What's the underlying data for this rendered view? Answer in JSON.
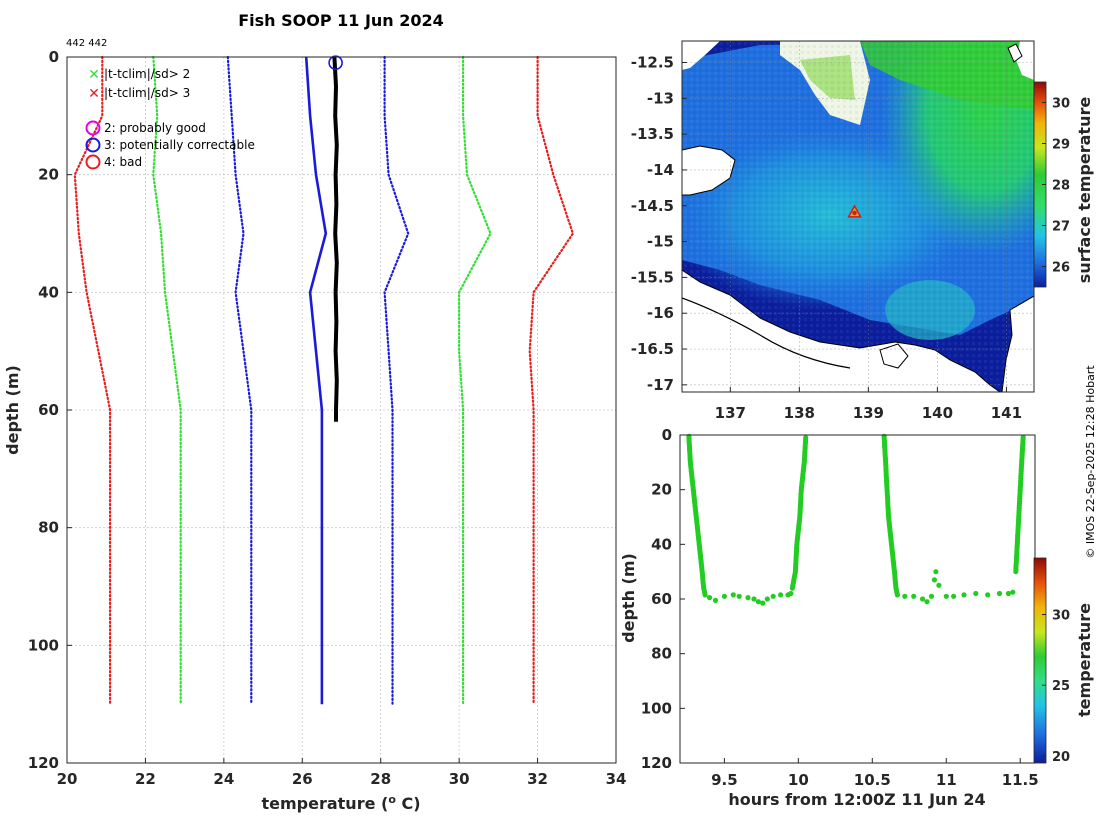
{
  "colors": {
    "red": "#e61e1e",
    "green": "#33dd33",
    "blue": "#1a1ad9",
    "black": "#000000",
    "glider_green": "#22cc22",
    "grid": "#c8c8d0",
    "deep_blue": "#0b1f9e"
  },
  "chart_data": [
    {
      "id": "profile",
      "type": "line",
      "title": "Fish SOOP 11 Jun 2024",
      "id_text": "442 442",
      "xlabel": "temperature (",
      "xlabel_sup": "o",
      "xlabel_end": " C)",
      "ylabel": "depth (m)",
      "xlim": [
        20,
        34
      ],
      "ylim": [
        0,
        120
      ],
      "xticks": [
        "20",
        "22",
        "24",
        "26",
        "28",
        "30",
        "32",
        "34"
      ],
      "yticks": [
        "0",
        "20",
        "40",
        "60",
        "80",
        "100",
        "120"
      ],
      "xtick_values": [
        20,
        22,
        24,
        26,
        28,
        30,
        32,
        34
      ],
      "ytick_values": [
        0,
        20,
        40,
        60,
        80,
        100,
        120
      ],
      "legend": {
        "flags": [
          {
            "label": "|t-tclim|/sd> 2",
            "color": "#33dd33"
          },
          {
            "label": "|t-tclim|/sd> 3",
            "color": "#e61e1e"
          }
        ],
        "quality": [
          {
            "label": "2: probably good",
            "color": "#e600e6"
          },
          {
            "label": "3: potentially correctable",
            "color": "#1a1ad9"
          },
          {
            "label": "4: bad",
            "color": "#e61e1e"
          }
        ]
      },
      "series": [
        {
          "name": "clim-3sd",
          "style": "dotted",
          "color": "#e61e1e",
          "points": [
            [
              20.9,
              0
            ],
            [
              20.9,
              10
            ],
            [
              20.2,
              20
            ],
            [
              20.3,
              30
            ],
            [
              20.5,
              40
            ],
            [
              20.8,
              50
            ],
            [
              21.1,
              60
            ],
            [
              21.1,
              110
            ]
          ]
        },
        {
          "name": "clim-2sd",
          "style": "dotted",
          "color": "#33dd33",
          "points": [
            [
              22.2,
              0
            ],
            [
              22.3,
              10
            ],
            [
              22.2,
              20
            ],
            [
              22.4,
              30
            ],
            [
              22.5,
              40
            ],
            [
              22.7,
              50
            ],
            [
              22.9,
              60
            ],
            [
              22.9,
              110
            ]
          ]
        },
        {
          "name": "clim-1sd",
          "style": "dotted",
          "color": "#1a1ad9",
          "points": [
            [
              24.1,
              0
            ],
            [
              24.2,
              10
            ],
            [
              24.3,
              20
            ],
            [
              24.5,
              30
            ],
            [
              24.3,
              40
            ],
            [
              24.5,
              50
            ],
            [
              24.7,
              60
            ],
            [
              24.7,
              110
            ]
          ]
        },
        {
          "name": "clim-mean",
          "style": "solid",
          "color": "#1a1ad9",
          "points": [
            [
              26.1,
              0
            ],
            [
              26.2,
              10
            ],
            [
              26.35,
              20
            ],
            [
              26.6,
              30
            ],
            [
              26.2,
              40
            ],
            [
              26.35,
              50
            ],
            [
              26.5,
              60
            ],
            [
              26.5,
              110
            ]
          ]
        },
        {
          "name": "clim+1sd",
          "style": "dotted",
          "color": "#1a1ad9",
          "points": [
            [
              28.1,
              0
            ],
            [
              28.1,
              10
            ],
            [
              28.2,
              20
            ],
            [
              28.7,
              30
            ],
            [
              28.1,
              40
            ],
            [
              28.2,
              50
            ],
            [
              28.3,
              60
            ],
            [
              28.3,
              110
            ]
          ]
        },
        {
          "name": "clim+2sd",
          "style": "dotted",
          "color": "#33dd33",
          "points": [
            [
              30.1,
              0
            ],
            [
              30.1,
              10
            ],
            [
              30.2,
              20
            ],
            [
              30.8,
              30
            ],
            [
              30.0,
              40
            ],
            [
              30.0,
              50
            ],
            [
              30.1,
              60
            ],
            [
              30.1,
              110
            ]
          ]
        },
        {
          "name": "clim+3sd",
          "style": "dotted",
          "color": "#e61e1e",
          "points": [
            [
              32.0,
              0
            ],
            [
              32.0,
              10
            ],
            [
              32.4,
              20
            ],
            [
              32.9,
              30
            ],
            [
              31.9,
              40
            ],
            [
              31.8,
              50
            ],
            [
              31.9,
              60
            ],
            [
              31.9,
              110
            ]
          ]
        },
        {
          "name": "observed",
          "style": "thick",
          "color": "#000000",
          "points": [
            [
              26.82,
              0
            ],
            [
              26.86,
              5
            ],
            [
              26.84,
              10
            ],
            [
              26.88,
              15
            ],
            [
              26.85,
              20
            ],
            [
              26.87,
              25
            ],
            [
              26.84,
              30
            ],
            [
              26.88,
              35
            ],
            [
              26.85,
              40
            ],
            [
              26.87,
              45
            ],
            [
              26.85,
              50
            ],
            [
              26.88,
              55
            ],
            [
              26.86,
              60
            ],
            [
              26.86,
              62
            ]
          ]
        }
      ],
      "markers": [
        {
          "label": "quality-3",
          "x": 26.85,
          "y": 0.8,
          "color": "#1a1ad9"
        }
      ]
    },
    {
      "id": "map",
      "type": "heatmap",
      "xlim": [
        136.3,
        141.4
      ],
      "ylim": [
        -17.1,
        -12.2
      ],
      "xticks": [
        "137",
        "138",
        "139",
        "140",
        "141"
      ],
      "yticks": [
        "-12.5",
        "-13",
        "-13.5",
        "-14",
        "-14.5",
        "-15",
        "-15.5",
        "-16",
        "-16.5",
        "-17"
      ],
      "xtick_values": [
        137,
        138,
        139,
        140,
        141
      ],
      "ytick_values": [
        -12.5,
        -13,
        -13.5,
        -14,
        -14.5,
        -15,
        -15.5,
        -16,
        -16.5,
        -17
      ],
      "colorbar_label": "surface temperature",
      "colorbar_range": [
        25.5,
        30.5
      ],
      "colorbar_ticks": [
        "26",
        "27",
        "28",
        "29",
        "30"
      ],
      "colorbar_tick_values": [
        26,
        27,
        28,
        29,
        30
      ],
      "station": {
        "lon": 138.8,
        "lat": -14.6
      }
    },
    {
      "id": "glider",
      "type": "scatter",
      "xlabel": "hours from 12:00Z 11 Jun 24",
      "ylabel": "depth (m)",
      "xlim": [
        9.2,
        11.6
      ],
      "ylim": [
        0,
        120
      ],
      "xticks": [
        "9.5",
        "10",
        "10.5",
        "11",
        "11.5"
      ],
      "yticks": [
        "0",
        "20",
        "40",
        "60",
        "80",
        "100",
        "120"
      ],
      "xtick_values": [
        9.5,
        10,
        10.5,
        11,
        11.5
      ],
      "ytick_values": [
        0,
        20,
        40,
        60,
        80,
        100,
        120
      ],
      "colorbar_label": "temperature",
      "colorbar_range": [
        19.5,
        34
      ],
      "colorbar_ticks": [
        "20",
        "25",
        "30"
      ],
      "colorbar_tick_values": [
        20,
        25,
        30
      ],
      "casts": [
        {
          "down": [
            [
              9.26,
              0.5
            ],
            [
              9.27,
              10
            ],
            [
              9.29,
              20
            ],
            [
              9.31,
              30
            ],
            [
              9.33,
              40
            ],
            [
              9.35,
              50
            ],
            [
              9.36,
              56
            ],
            [
              9.37,
              58.5
            ]
          ],
          "bottom": [
            [
              9.4,
              59.5
            ],
            [
              9.44,
              60.5
            ],
            [
              9.5,
              59
            ],
            [
              9.56,
              58.5
            ],
            [
              9.6,
              59
            ],
            [
              9.66,
              59.5
            ],
            [
              9.7,
              60
            ],
            [
              9.73,
              61
            ],
            [
              9.76,
              61.5
            ],
            [
              9.79,
              60
            ],
            [
              9.83,
              59
            ],
            [
              9.88,
              58.5
            ],
            [
              9.93,
              58.5
            ],
            [
              9.95,
              58
            ]
          ],
          "up": [
            [
              9.96,
              56
            ],
            [
              9.98,
              50
            ],
            [
              9.99,
              40
            ],
            [
              10.01,
              30
            ],
            [
              10.02,
              20
            ],
            [
              10.04,
              10
            ],
            [
              10.05,
              1
            ]
          ]
        },
        {
          "down": [
            [
              10.58,
              0.5
            ],
            [
              10.59,
              10
            ],
            [
              10.6,
              20
            ],
            [
              10.61,
              30
            ],
            [
              10.63,
              40
            ],
            [
              10.65,
              50
            ],
            [
              10.66,
              56
            ],
            [
              10.67,
              58.5
            ]
          ],
          "bottom": [
            [
              10.72,
              59
            ],
            [
              10.78,
              59
            ],
            [
              10.84,
              60
            ],
            [
              10.87,
              61
            ],
            [
              10.9,
              59
            ],
            [
              10.92,
              53
            ],
            [
              10.93,
              50
            ],
            [
              10.95,
              55
            ],
            [
              11.0,
              59
            ],
            [
              11.05,
              59
            ],
            [
              11.12,
              58.5
            ],
            [
              11.2,
              58
            ],
            [
              11.28,
              58.5
            ],
            [
              11.36,
              58
            ],
            [
              11.42,
              58
            ],
            [
              11.45,
              57.5
            ]
          ],
          "up": [
            [
              11.47,
              50
            ],
            [
              11.48,
              40
            ],
            [
              11.49,
              30
            ],
            [
              11.5,
              20
            ],
            [
              11.51,
              10
            ],
            [
              11.52,
              0.8
            ]
          ]
        }
      ]
    }
  ],
  "copyright": "© IMOS 22-Sep-2025 12:28 Hobart"
}
